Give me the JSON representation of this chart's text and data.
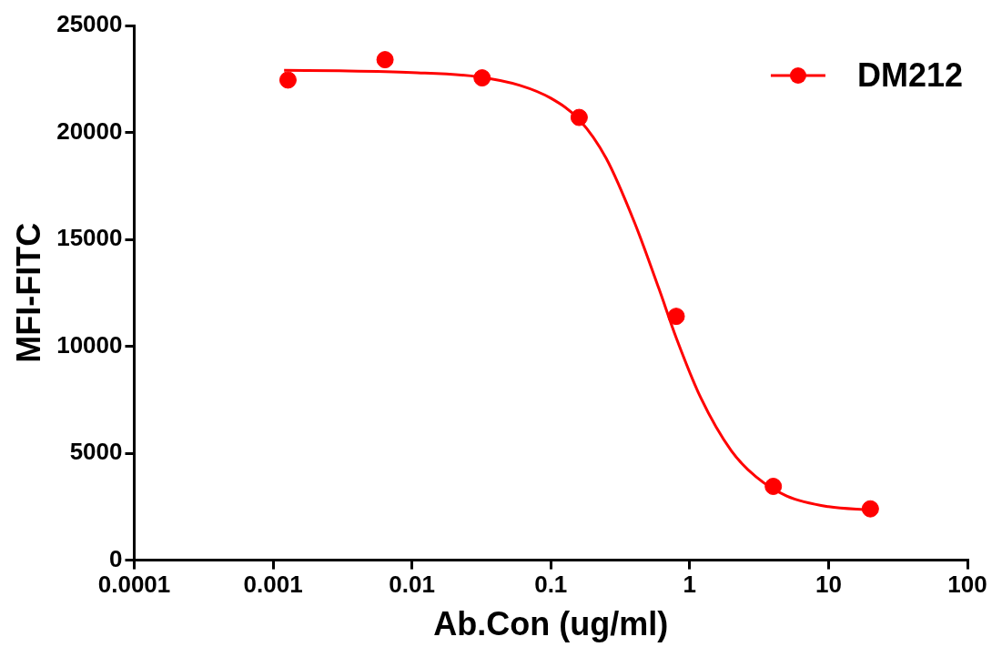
{
  "chart_data": {
    "type": "scatter",
    "xlabel": "Ab.Con (ug/ml)",
    "ylabel": "MFI-FITC",
    "log": "x",
    "xlim": [
      0.0001,
      100
    ],
    "xticks": [
      0.0001,
      0.001,
      0.01,
      0.1,
      1,
      10,
      100
    ],
    "ylim": [
      0,
      25000
    ],
    "yticks": [
      0,
      5000,
      10000,
      15000,
      20000,
      25000
    ],
    "grid": false,
    "legend": "top right",
    "marker": "circle",
    "series": [
      {
        "name": "DM212",
        "color": "#ff0000",
        "x": [
          0.00128,
          0.0064,
          0.032,
          0.16,
          0.8,
          4,
          20
        ],
        "values": [
          22450,
          23400,
          22550,
          20700,
          11400,
          3450,
          2400
        ]
      },
      {
        "type": "line",
        "color": "#ff0000",
        "line_style": "solid",
        "marker": "none",
        "x": [
          0.0012,
          0.003,
          0.01,
          0.03,
          0.06,
          0.1,
          0.16,
          0.25,
          0.4,
          0.6,
          0.8,
          1.2,
          2,
          3,
          5,
          10,
          20
        ],
        "values": [
          22900,
          22880,
          22800,
          22600,
          22200,
          21600,
          20600,
          18800,
          15800,
          12700,
          10400,
          7600,
          5100,
          3900,
          3000,
          2500,
          2350
        ]
      }
    ]
  }
}
